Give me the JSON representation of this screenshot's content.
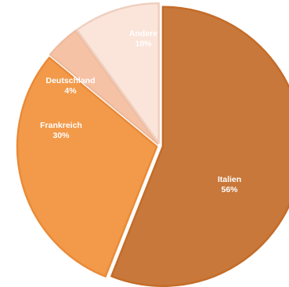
{
  "chart_data": {
    "type": "pie",
    "title": "",
    "slices": [
      {
        "label": "Italien",
        "value": 56,
        "value_label": "56%",
        "fill": "#c8783a",
        "stroke": "#c46c28"
      },
      {
        "label": "Frankreich",
        "value": 30,
        "value_label": "30%",
        "fill": "#f29a4a",
        "stroke": "#ea8a38"
      },
      {
        "label": "Deutschland",
        "value": 4,
        "value_label": "4%",
        "fill": "#f6c2a6",
        "stroke": "#eebb9e"
      },
      {
        "label": "Andere",
        "value": 10,
        "value_label": "10%",
        "fill": "#fbe5da",
        "stroke": "#efcfc0"
      }
    ],
    "start_angle": "12 o'clock",
    "direction": "clockwise",
    "legend": "none"
  }
}
